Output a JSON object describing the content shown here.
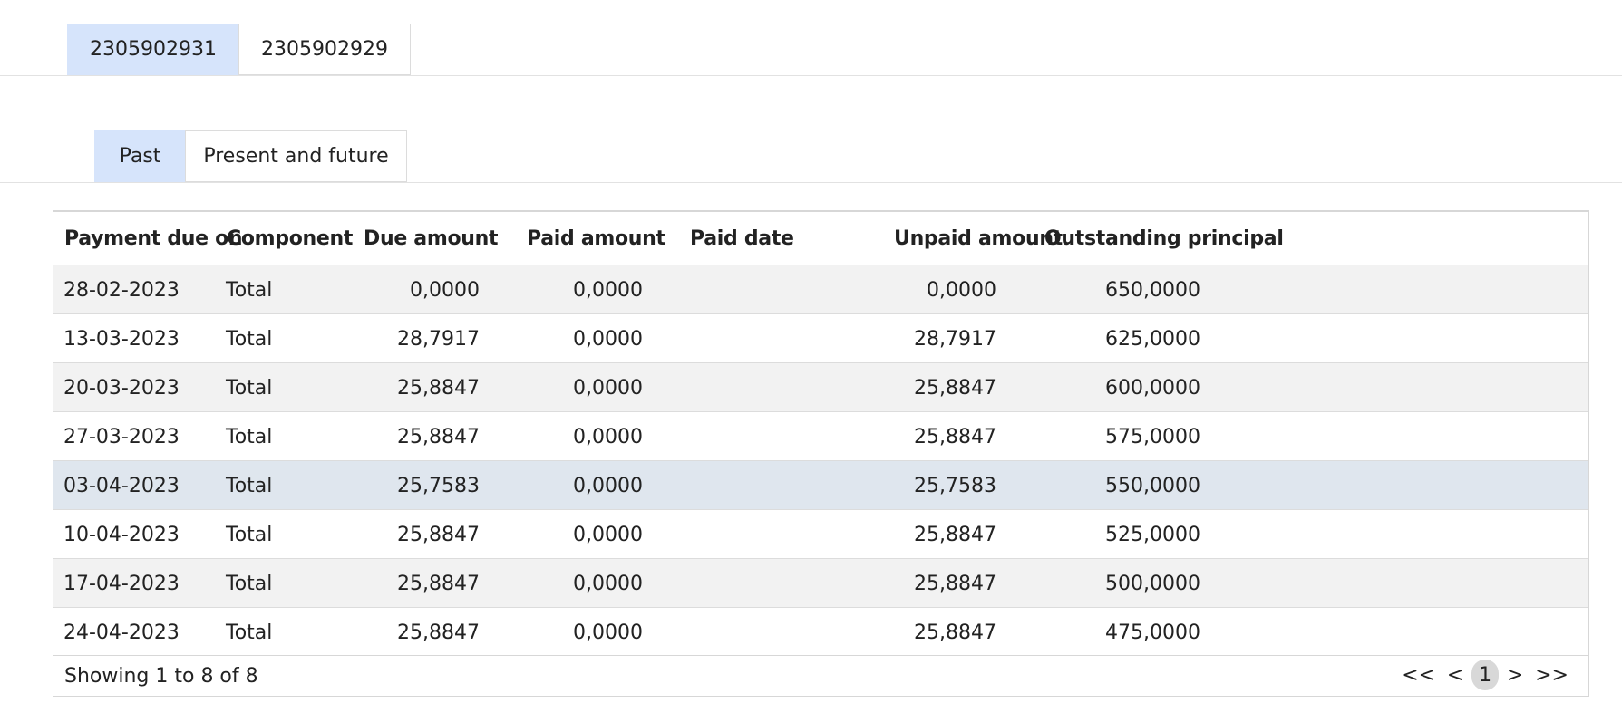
{
  "account_tabs": [
    {
      "label": "2305902931",
      "active": true
    },
    {
      "label": "2305902929",
      "active": false
    }
  ],
  "period_tabs": [
    {
      "label": "Past",
      "active": true
    },
    {
      "label": "Present and future",
      "active": false
    }
  ],
  "table": {
    "headers": {
      "payment_due_on": "Payment due on",
      "component": "Component",
      "due_amount": "Due amount",
      "paid_amount": "Paid amount",
      "paid_date": "Paid date",
      "unpaid_amount": "Unpaid amount",
      "outstanding_principal": "Outstanding principal"
    },
    "rows": [
      {
        "date": "28-02-2023",
        "component": "Total",
        "due": "0,0000",
        "paid": "0,0000",
        "paid_date": "",
        "unpaid": "0,0000",
        "outstanding": "650,0000"
      },
      {
        "date": "13-03-2023",
        "component": "Total",
        "due": "28,7917",
        "paid": "0,0000",
        "paid_date": "",
        "unpaid": "28,7917",
        "outstanding": "625,0000"
      },
      {
        "date": "20-03-2023",
        "component": "Total",
        "due": "25,8847",
        "paid": "0,0000",
        "paid_date": "",
        "unpaid": "25,8847",
        "outstanding": "600,0000"
      },
      {
        "date": "27-03-2023",
        "component": "Total",
        "due": "25,8847",
        "paid": "0,0000",
        "paid_date": "",
        "unpaid": "25,8847",
        "outstanding": "575,0000"
      },
      {
        "date": "03-04-2023",
        "component": "Total",
        "due": "25,7583",
        "paid": "0,0000",
        "paid_date": "",
        "unpaid": "25,7583",
        "outstanding": "550,0000"
      },
      {
        "date": "10-04-2023",
        "component": "Total",
        "due": "25,8847",
        "paid": "0,0000",
        "paid_date": "",
        "unpaid": "25,8847",
        "outstanding": "525,0000"
      },
      {
        "date": "17-04-2023",
        "component": "Total",
        "due": "25,8847",
        "paid": "0,0000",
        "paid_date": "",
        "unpaid": "25,8847",
        "outstanding": "500,0000"
      },
      {
        "date": "24-04-2023",
        "component": "Total",
        "due": "25,8847",
        "paid": "0,0000",
        "paid_date": "",
        "unpaid": "25,8847",
        "outstanding": "475,0000"
      }
    ],
    "highlighted_row": 4
  },
  "footer": {
    "info": "Showing 1 to 8 of 8",
    "pager": {
      "first": "<<",
      "prev": "<",
      "current_page": "1",
      "next": ">",
      "last": ">>"
    }
  },
  "colors": {
    "active_tab": "#d6e4fb",
    "stripe_row": "#f2f2f2",
    "highlight_row": "#dfe6ee",
    "current_page": "#d8d8d8"
  }
}
